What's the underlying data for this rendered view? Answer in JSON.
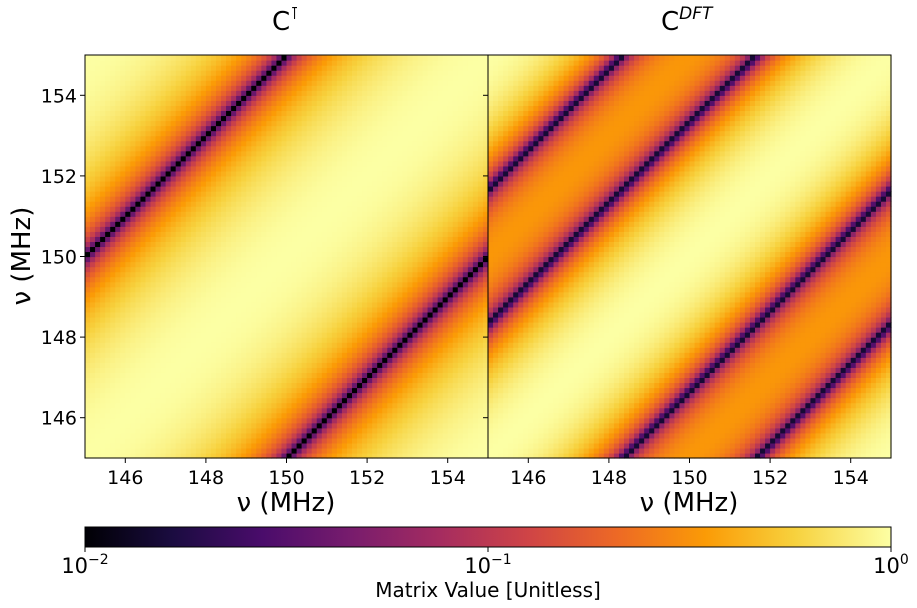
{
  "chart_data": [
    {
      "type": "heatmap",
      "title": "C",
      "title_superscript": "⊺",
      "xlabel": "ν (MHz)",
      "ylabel": "ν (MHz)",
      "xlim": [
        145,
        155
      ],
      "ylim": [
        145,
        155
      ],
      "xticks": [
        "146",
        "148",
        "150",
        "152",
        "154"
      ],
      "yticks": [
        "146",
        "148",
        "150",
        "152",
        "154"
      ],
      "description_values": {
        "grid_n": 80,
        "peak_value": 1.0,
        "band_spacing_MHz": 5,
        "min_value": 0.01
      }
    },
    {
      "type": "heatmap",
      "title": "C",
      "title_superscript": "DFT",
      "xlabel": "ν (MHz)",
      "xlim": [
        145,
        155
      ],
      "ylim": [
        145,
        155
      ],
      "xticks": [
        "146",
        "148",
        "150",
        "152",
        "154"
      ],
      "description_values": {
        "grid_n": 80,
        "peak_value": 1.0,
        "band_spacing_MHz": 3.33,
        "min_value": 0.01
      }
    }
  ],
  "colorbar": {
    "label": "Matrix Value [Unitless]",
    "scale": "log",
    "range": [
      0.01,
      1
    ],
    "colormap": "inferno",
    "ticks": [
      {
        "base": "10",
        "exp": "−2"
      },
      {
        "base": "10",
        "exp": "−1"
      },
      {
        "base": "10",
        "exp": "0"
      }
    ]
  }
}
